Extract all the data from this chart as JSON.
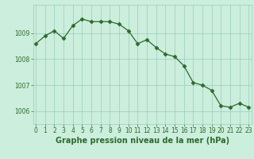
{
  "x": [
    0,
    1,
    2,
    3,
    4,
    5,
    6,
    7,
    8,
    9,
    10,
    11,
    12,
    13,
    14,
    15,
    16,
    17,
    18,
    19,
    20,
    21,
    22,
    23
  ],
  "y": [
    1008.6,
    1008.9,
    1009.1,
    1008.8,
    1009.3,
    1009.55,
    1009.45,
    1009.45,
    1009.45,
    1009.35,
    1009.1,
    1008.6,
    1008.75,
    1008.45,
    1008.2,
    1008.1,
    1007.75,
    1007.1,
    1007.0,
    1006.8,
    1006.2,
    1006.15,
    1006.3,
    1006.15
  ],
  "line_color": "#2d6a2d",
  "marker": "D",
  "marker_size": 2.5,
  "background_color": "#cceedd",
  "grid_color": "#99ccbb",
  "xlabel": "Graphe pression niveau de la mer (hPa)",
  "xlabel_fontsize": 7,
  "ylabel_ticks": [
    1006,
    1007,
    1008,
    1009
  ],
  "xtick_labels": [
    "0",
    "1",
    "2",
    "3",
    "4",
    "5",
    "6",
    "7",
    "8",
    "9",
    "10",
    "11",
    "12",
    "13",
    "14",
    "15",
    "16",
    "17",
    "18",
    "19",
    "20",
    "21",
    "22",
    "23"
  ],
  "ylim": [
    1005.5,
    1010.1
  ],
  "xlim": [
    -0.3,
    23.3
  ],
  "tick_fontsize": 5.5,
  "axis_color": "#2d6a2d",
  "xlabel_bold": true
}
